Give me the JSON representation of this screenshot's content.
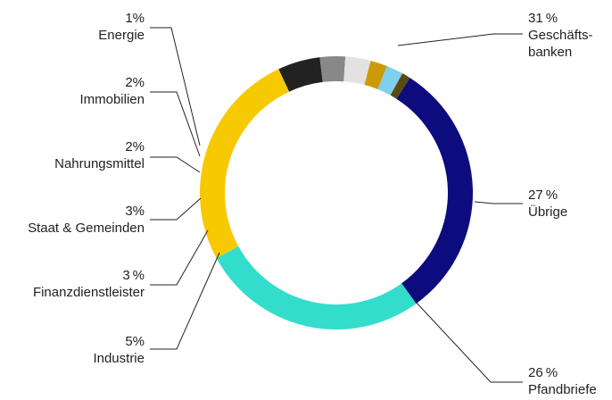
{
  "chart_data": {
    "type": "pie",
    "variant": "donut",
    "slices": [
      {
        "pct": "31 %",
        "value": 31,
        "name_lines": [
          "Geschäfts-",
          "banken"
        ],
        "color": "#0c0c7e"
      },
      {
        "pct": "27 %",
        "value": 27,
        "name_lines": [
          "Übrige"
        ],
        "color": "#33ddcc"
      },
      {
        "pct": "26 %",
        "value": 26,
        "name_lines": [
          "Pfandbriefe"
        ],
        "color": "#f7c900"
      },
      {
        "pct": "5%",
        "value": 5,
        "name_lines": [
          "Industrie"
        ],
        "color": "#222222"
      },
      {
        "pct": "3 %",
        "value": 3,
        "name_lines": [
          "Finanzdienstleister"
        ],
        "color": "#888888"
      },
      {
        "pct": "3%",
        "value": 3,
        "name_lines": [
          "Staat & Gemeinden"
        ],
        "color": "#e2e2e2"
      },
      {
        "pct": "2%",
        "value": 2,
        "name_lines": [
          "Nahrungsmittel"
        ],
        "color": "#cc9a06"
      },
      {
        "pct": "2%",
        "value": 2,
        "name_lines": [
          "Immobilien"
        ],
        "color": "#80cfee"
      },
      {
        "pct": "1%",
        "value": 1,
        "name_lines": [
          "Energie"
        ],
        "color": "#5a4a12"
      }
    ],
    "legend": "none",
    "labels": "outside-with-leader-lines"
  }
}
